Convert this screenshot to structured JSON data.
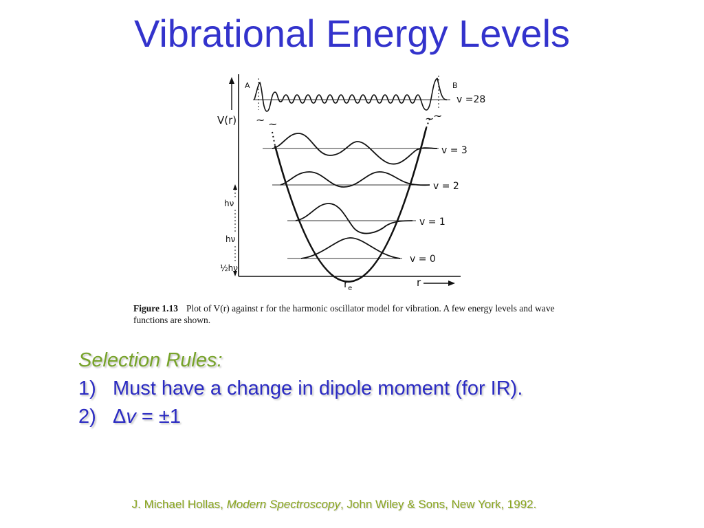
{
  "slide": {
    "title": "Vibrational Energy Levels"
  },
  "figure": {
    "y_axis_label": "V(r)",
    "x_axis_label": "r",
    "equilibrium_label": "r",
    "equilibrium_subscript": "e",
    "turning_point_left": "A",
    "turning_point_right": "B",
    "levels": [
      {
        "label": "v = 0"
      },
      {
        "label": "v = 1"
      },
      {
        "label": "v = 2"
      },
      {
        "label": "v = 3"
      },
      {
        "label": "v =28"
      }
    ],
    "spacing_labels": [
      "hν",
      "hν",
      "½hν"
    ],
    "caption_label": "Figure 1.13",
    "caption_text": "Plot of V(r) against r for the harmonic oscillator model for vibration. A few energy levels and wave functions are shown."
  },
  "selection_rules": {
    "heading": "Selection Rules:",
    "rules": [
      {
        "number": "1)",
        "text": "Must have a change in dipole moment (for IR)."
      },
      {
        "number": "2)",
        "delta": "Δ",
        "var": "v",
        "text": " = ±1"
      }
    ]
  },
  "citation": {
    "author": "J. Michael Hollas, ",
    "book": "Modern Spectroscopy",
    "publisher": ", John Wiley & Sons, New York, 1992."
  },
  "colors": {
    "title": "#3333cc",
    "heading": "#77a32a",
    "rule_text": "#2b2bc2",
    "citation": "#8aa61f"
  }
}
